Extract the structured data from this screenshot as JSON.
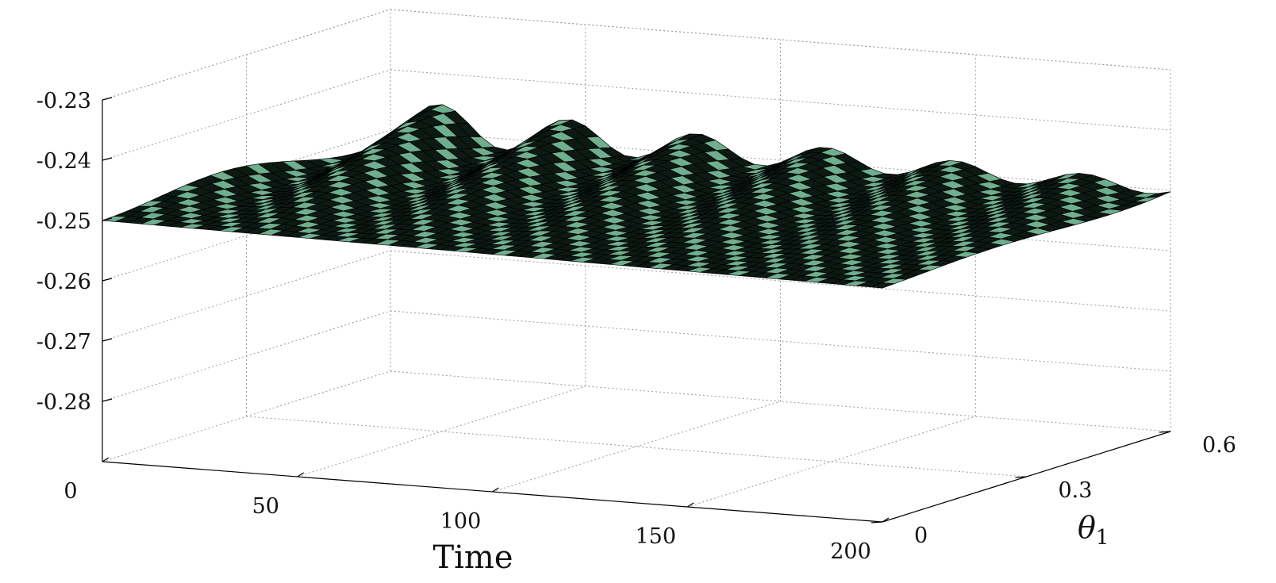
{
  "chart_data": {
    "type": "surface",
    "xlabel": "Time",
    "ylabel": "θ",
    "ylabel_sub": "1",
    "zlabel": "",
    "xlim": [
      0,
      200
    ],
    "ylim": [
      0,
      0.6
    ],
    "zlim": [
      -0.29,
      -0.23
    ],
    "x_ticks": [
      0,
      50,
      100,
      150,
      200
    ],
    "y_ticks": [
      0,
      0.3,
      0.6
    ],
    "z_ticks": [
      -0.23,
      -0.24,
      -0.25,
      -0.26,
      -0.27,
      -0.28
    ],
    "x_tick_labels": [
      "0",
      "50",
      "100",
      "150",
      "200"
    ],
    "y_tick_labels": [
      "0",
      "0.3",
      "0.6"
    ],
    "z_tick_labels": [
      "-0.23",
      "-0.24",
      "-0.25",
      "-0.26",
      "-0.27",
      "-0.28"
    ],
    "grid": true,
    "surface": {
      "baseline_value": -0.25,
      "oscillation_amplitude_at_time_0": 0.0038,
      "oscillation_period_time": 33,
      "edge_value_time_0": -0.25,
      "colors": {
        "mesh": "#000000",
        "face": "#6fae8f"
      }
    }
  },
  "colors": {
    "background": "#ffffff",
    "axis": "#000000",
    "grid": "#9a9a9a"
  }
}
